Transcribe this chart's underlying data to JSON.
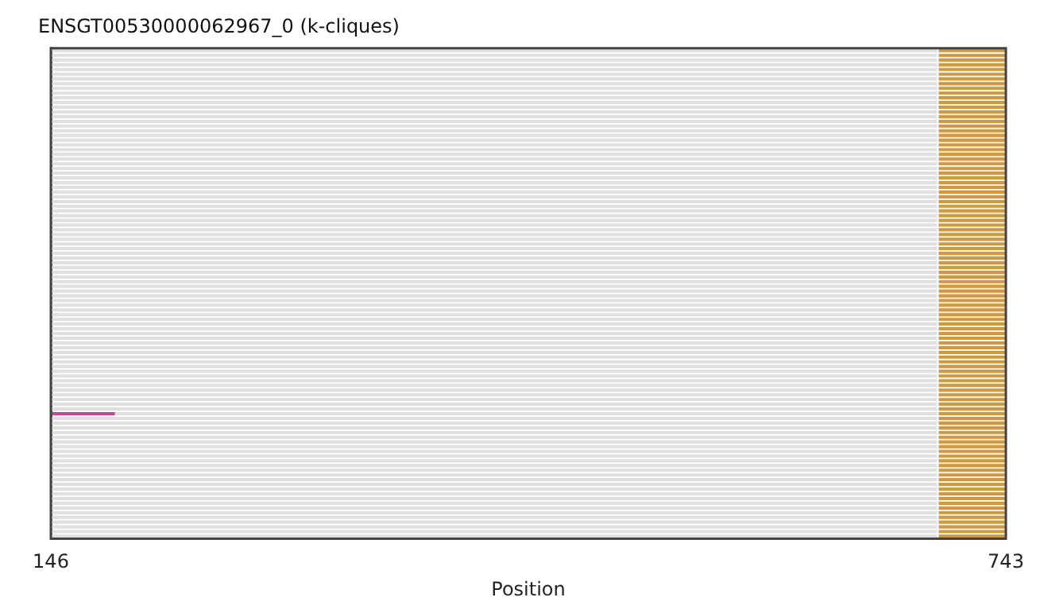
{
  "chart_data": {
    "type": "bar",
    "orientation": "horizontal",
    "title": "ENSGT00530000062967_0 (k-cliques)",
    "xlabel": "Position",
    "categories": [
      null,
      null,
      null,
      null,
      null,
      null,
      null,
      null,
      null,
      null,
      null,
      null,
      null,
      null,
      null,
      null,
      null,
      null,
      null,
      null,
      null,
      null,
      null,
      null,
      null,
      null,
      null,
      null,
      null,
      null,
      null,
      null,
      null,
      null,
      null,
      null,
      null,
      null,
      null,
      null,
      null,
      null,
      null,
      null,
      null,
      null,
      null,
      null,
      null,
      null,
      null,
      null,
      null,
      null,
      null,
      null,
      null,
      null,
      null,
      null,
      null,
      null,
      null,
      null,
      null,
      null,
      null,
      null,
      null,
      null,
      null,
      null,
      null,
      null,
      null,
      null,
      null,
      null,
      null,
      null,
      null,
      null,
      null,
      null,
      null,
      null,
      null,
      null,
      null,
      null,
      null,
      null,
      null,
      null,
      null,
      null,
      null,
      null,
      null,
      null,
      null,
      null,
      null,
      null
    ],
    "series": [
      {
        "color": "#e0e0e0",
        "base": [
          146,
          146,
          146,
          146,
          146,
          146,
          146,
          146,
          146,
          146,
          146,
          146,
          146,
          146,
          146,
          146,
          146,
          146,
          146,
          146,
          146,
          146,
          146,
          146,
          146,
          146,
          146,
          146,
          146,
          146,
          146,
          146,
          146,
          146,
          146,
          146,
          146,
          146,
          146,
          146,
          146,
          146,
          146,
          146,
          146,
          146,
          146,
          146,
          146,
          146,
          146,
          146,
          146,
          146,
          146,
          146,
          146,
          146,
          146,
          146,
          146,
          146,
          146,
          146,
          146,
          146,
          146,
          146,
          146,
          146,
          146,
          146,
          146,
          146,
          146,
          146,
          146,
          146,
          146,
          146,
          146,
          146,
          146,
          146,
          146,
          146,
          146,
          146,
          146,
          146,
          146,
          146,
          146,
          146,
          146,
          146,
          146,
          146,
          146,
          146,
          146,
          146,
          146,
          146
        ],
        "values": [
          554,
          554,
          554,
          554,
          554,
          554,
          554,
          554,
          554,
          554,
          554,
          554,
          554,
          554,
          554,
          554,
          554,
          554,
          554,
          554,
          554,
          554,
          554,
          554,
          554,
          554,
          554,
          554,
          554,
          554,
          554,
          554,
          554,
          554,
          554,
          554,
          554,
          554,
          554,
          554,
          554,
          554,
          554,
          554,
          554,
          554,
          554,
          554,
          554,
          554,
          554,
          554,
          554,
          554,
          554,
          554,
          554,
          554,
          554,
          554,
          554,
          554,
          554,
          554,
          554,
          554,
          554,
          554,
          554,
          554,
          554,
          554,
          554,
          554,
          554,
          554,
          554,
          554,
          554,
          554,
          554,
          554,
          554,
          554,
          554,
          554,
          554,
          554,
          554,
          554,
          554,
          554,
          554,
          554,
          554,
          554,
          554,
          554,
          554,
          554,
          554,
          554,
          554,
          554
        ]
      },
      {
        "color": "#d4983c",
        "base": [
          701,
          701,
          701,
          701,
          701,
          701,
          701,
          701,
          701,
          701,
          701,
          701,
          701,
          701,
          701,
          701,
          701,
          701,
          701,
          701,
          701,
          701,
          701,
          701,
          701,
          701,
          701,
          701,
          701,
          701,
          701,
          701,
          701,
          701,
          701,
          701,
          701,
          701,
          701,
          701,
          701,
          701,
          701,
          701,
          701,
          701,
          701,
          701,
          701,
          701,
          701,
          701,
          701,
          701,
          701,
          701,
          701,
          701,
          701,
          701,
          701,
          701,
          701,
          701,
          701,
          701,
          701,
          701,
          701,
          701,
          701,
          701,
          701,
          701,
          701,
          701,
          701,
          701,
          701,
          701,
          701,
          701,
          701,
          701,
          701,
          701,
          701,
          701,
          701,
          701,
          701,
          701,
          701,
          701,
          701,
          701,
          701,
          701,
          701,
          701,
          701,
          701,
          701,
          701
        ],
        "values": [
          42,
          42,
          42,
          42,
          42,
          42,
          42,
          42,
          42,
          42,
          42,
          42,
          42,
          42,
          42,
          42,
          42,
          42,
          42,
          42,
          42,
          42,
          42,
          42,
          42,
          42,
          42,
          42,
          42,
          42,
          42,
          42,
          42,
          42,
          42,
          42,
          42,
          42,
          42,
          42,
          42,
          42,
          42,
          42,
          42,
          42,
          42,
          42,
          42,
          42,
          42,
          42,
          42,
          42,
          42,
          42,
          42,
          42,
          42,
          42,
          42,
          42,
          42,
          42,
          42,
          42,
          42,
          42,
          42,
          42,
          42,
          42,
          42,
          42,
          42,
          42,
          42,
          42,
          42,
          42,
          42,
          42,
          42,
          42,
          42,
          42,
          42,
          42,
          42,
          42,
          42,
          42,
          42,
          42,
          42,
          42,
          42,
          42,
          42,
          42,
          42,
          42,
          42,
          42
        ]
      },
      {
        "color": "#d0409a",
        "base": [
          null,
          null,
          null,
          null,
          null,
          null,
          null,
          null,
          null,
          null,
          null,
          null,
          null,
          null,
          null,
          null,
          null,
          null,
          null,
          null,
          null,
          null,
          null,
          null,
          null,
          null,
          null,
          null,
          null,
          null,
          null,
          null,
          null,
          null,
          null,
          null,
          null,
          null,
          null,
          null,
          null,
          null,
          null,
          null,
          null,
          null,
          null,
          null,
          null,
          null,
          null,
          null,
          null,
          null,
          null,
          null,
          null,
          null,
          null,
          null,
          null,
          null,
          null,
          null,
          null,
          null,
          null,
          null,
          null,
          null,
          null,
          null,
          null,
          null,
          null,
          null,
          null,
          146,
          null,
          null,
          null,
          null,
          null,
          null,
          null,
          null,
          null,
          null,
          null,
          null,
          null,
          null,
          null,
          null,
          null,
          null,
          null,
          null,
          null,
          null,
          null,
          null,
          null,
          null
        ],
        "values": [
          null,
          null,
          null,
          null,
          null,
          null,
          null,
          null,
          null,
          null,
          null,
          null,
          null,
          null,
          null,
          null,
          null,
          null,
          null,
          null,
          null,
          null,
          null,
          null,
          null,
          null,
          null,
          null,
          null,
          null,
          null,
          null,
          null,
          null,
          null,
          null,
          null,
          null,
          null,
          null,
          null,
          null,
          null,
          null,
          null,
          null,
          null,
          null,
          null,
          null,
          null,
          null,
          null,
          null,
          null,
          null,
          null,
          null,
          null,
          null,
          null,
          null,
          null,
          null,
          null,
          null,
          null,
          null,
          null,
          null,
          null,
          null,
          null,
          null,
          null,
          null,
          null,
          40,
          null,
          null,
          null,
          null,
          null,
          null,
          null,
          null,
          null,
          null,
          null,
          null,
          null,
          null,
          null,
          null,
          null,
          null,
          null,
          null,
          null,
          null,
          null,
          null,
          null,
          null
        ]
      }
    ],
    "xlim": [
      146,
      743
    ],
    "xticks": [
      146,
      743
    ],
    "tick_labels": "x"
  }
}
